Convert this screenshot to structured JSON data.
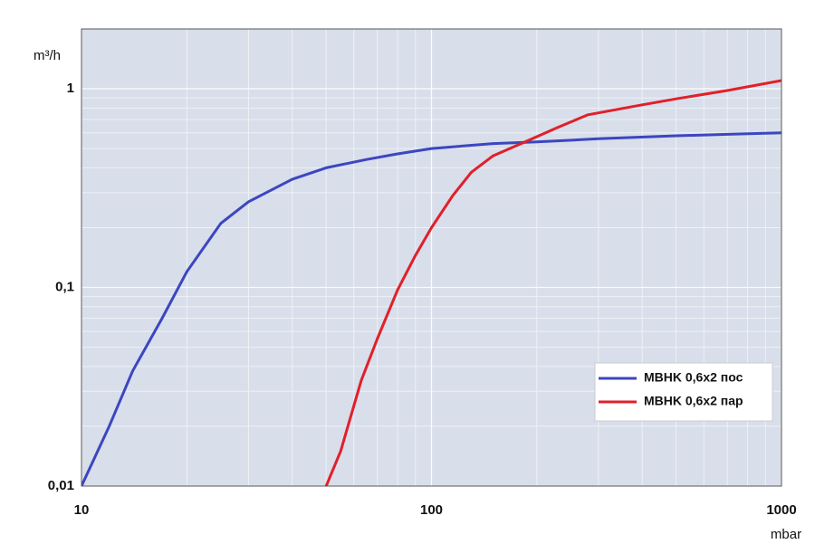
{
  "chart_data": {
    "type": "line",
    "y_label": "m³/h",
    "x_label": "mbar",
    "xlog": true,
    "ylog": true,
    "grid": true,
    "minor_grid": true,
    "background": "#d8deea",
    "legend_position": "lower right",
    "xlim": [
      10,
      1000
    ],
    "ylim": [
      0.01,
      2
    ],
    "xticks": [
      10,
      100,
      1000
    ],
    "yticks": [
      {
        "value": 0.01,
        "label": "0,01"
      },
      {
        "value": 0.1,
        "label": "0,1"
      },
      1
    ],
    "series": [
      {
        "name": "MBHK 0,6x2 пос",
        "color": "#3c46c0",
        "x": [
          10,
          12,
          14,
          17,
          20,
          25,
          30,
          40,
          50,
          65,
          80,
          100,
          150,
          200,
          300,
          500,
          700,
          1000
        ],
        "values": [
          0.01,
          0.02,
          0.038,
          0.07,
          0.12,
          0.21,
          0.27,
          0.35,
          0.4,
          0.44,
          0.47,
          0.5,
          0.53,
          0.54,
          0.56,
          0.58,
          0.59,
          0.6
        ]
      },
      {
        "name": "MBHK 0,6x2 пар",
        "color": "#e0202a",
        "x": [
          50,
          55,
          63,
          70,
          80,
          90,
          100,
          115,
          130,
          150,
          185,
          230,
          280,
          400,
          500,
          700,
          1000
        ],
        "values": [
          0.01,
          0.015,
          0.034,
          0.055,
          0.097,
          0.145,
          0.2,
          0.29,
          0.38,
          0.46,
          0.54,
          0.64,
          0.74,
          0.83,
          0.89,
          0.98,
          1.1
        ]
      }
    ]
  }
}
